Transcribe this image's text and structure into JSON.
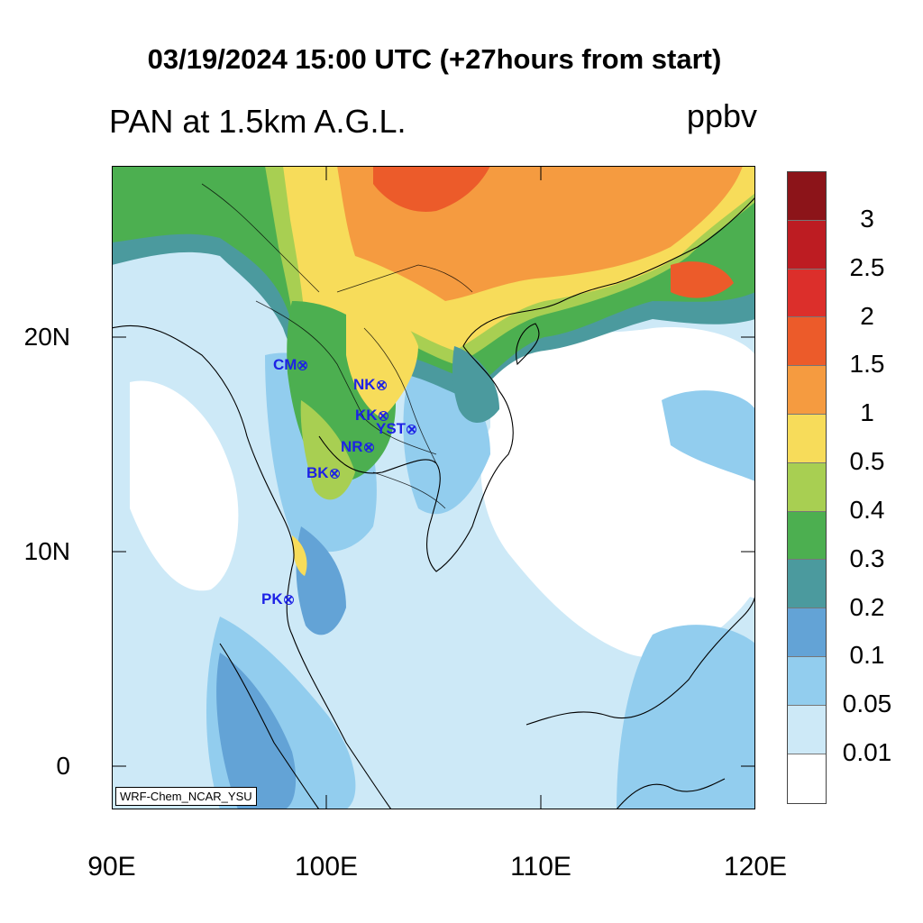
{
  "title": "03/19/2024 15:00 UTC (+27hours from start)",
  "subtitle": "PAN at 1.5km A.G.L.",
  "units": "ppbv",
  "credit": "WRF-Chem_NCAR_YSU",
  "lat_labels": [
    "20N",
    "10N",
    "0"
  ],
  "lon_labels": [
    "90E",
    "100E",
    "110E",
    "120E"
  ],
  "stations": [
    {
      "name": "CM",
      "lon": 98.9,
      "lat": 18.8
    },
    {
      "name": "NK",
      "lon": 102.7,
      "lat": 17.9
    },
    {
      "name": "KK",
      "lon": 102.8,
      "lat": 16.5
    },
    {
      "name": "YST",
      "lon": 104.1,
      "lat": 15.8
    },
    {
      "name": "NR",
      "lon": 102.1,
      "lat": 15.0
    },
    {
      "name": "BK",
      "lon": 100.5,
      "lat": 13.7
    },
    {
      "name": "PK",
      "lon": 98.4,
      "lat": 7.9
    }
  ],
  "colorbar": {
    "levels": [
      "0.01",
      "0.05",
      "0.1",
      "0.2",
      "0.3",
      "0.4",
      "0.5",
      "1",
      "1.5",
      "2",
      "2.5",
      "3"
    ],
    "colors": [
      "#ffffff",
      "#cde9f7",
      "#92cdee",
      "#63a3d6",
      "#4b9a9e",
      "#4caf50",
      "#a8cf52",
      "#f7dc5a",
      "#f59b40",
      "#ec5b2a",
      "#dc2f2b",
      "#bd1c22",
      "#8c1419"
    ]
  }
}
